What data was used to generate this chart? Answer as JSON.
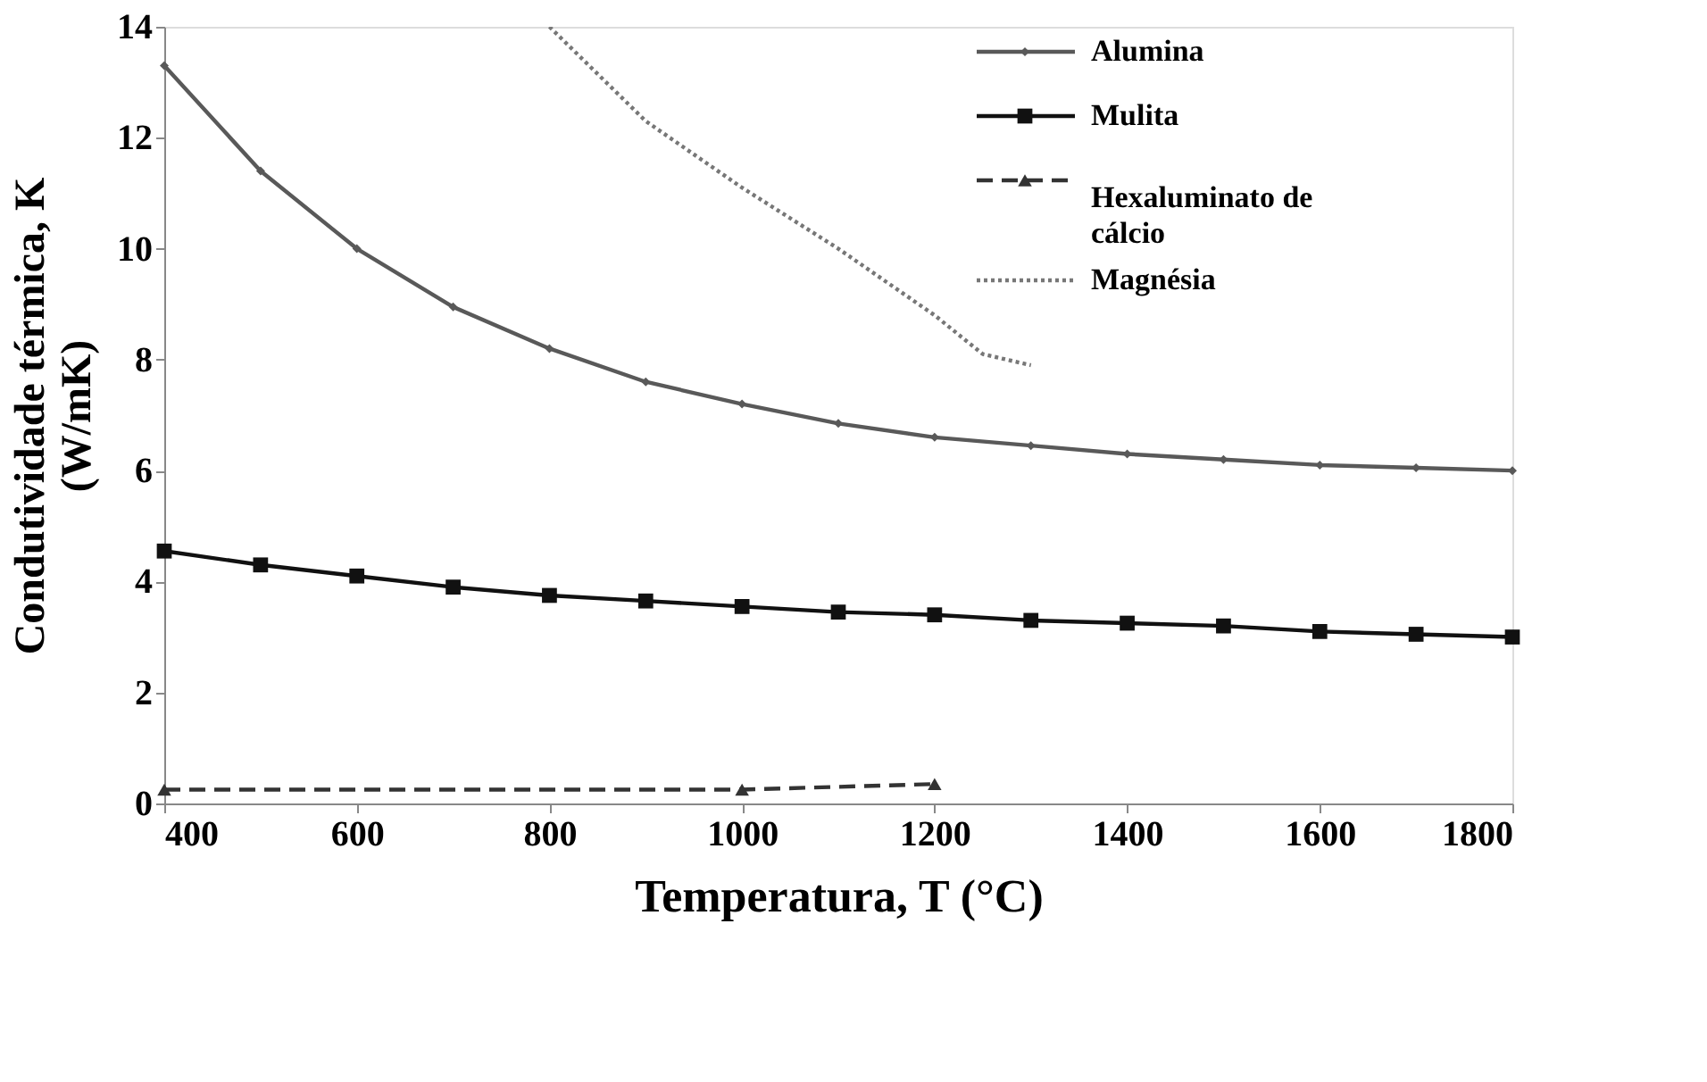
{
  "chart_data": {
    "type": "line",
    "xlabel": "Temperatura, T (°C)",
    "ylabel": "Condutividade térmica, K\n(W/mK)",
    "x": [
      400,
      500,
      600,
      700,
      800,
      900,
      1000,
      1100,
      1200,
      1300,
      1400,
      1500,
      1600,
      1700,
      1800
    ],
    "xlim": [
      400,
      1800
    ],
    "xticks": [
      400,
      600,
      800,
      1000,
      1200,
      1400,
      1600,
      1800
    ],
    "ylim": [
      0,
      14
    ],
    "yticks": [
      0,
      2,
      4,
      6,
      8,
      10,
      12,
      14
    ],
    "grid": false,
    "legend": "top right",
    "series": [
      {
        "name": "Alumina",
        "color": "#595959",
        "marker": "diamond",
        "line_style": "solid",
        "values": [
          13.3,
          11.4,
          10.0,
          8.95,
          8.2,
          7.6,
          7.2,
          6.85,
          6.6,
          6.45,
          6.3,
          6.2,
          6.1,
          6.05,
          6.0
        ]
      },
      {
        "name": "Mulita",
        "color": "#111111",
        "marker": "square",
        "line_style": "solid",
        "values": [
          4.55,
          4.3,
          4.1,
          3.9,
          3.75,
          3.65,
          3.55,
          3.45,
          3.4,
          3.3,
          3.25,
          3.2,
          3.1,
          3.05,
          3.0
        ]
      },
      {
        "name": "Hexaluminato de cálcio",
        "color": "#333333",
        "marker": "triangle",
        "line_style": "dashed",
        "x": [
          400,
          1000,
          1200
        ],
        "values": [
          0.25,
          0.25,
          0.35
        ]
      },
      {
        "name": "Magnésia",
        "color": "#777777",
        "marker": "none",
        "line_style": "dotted",
        "x": [
          800,
          900,
          1000,
          1100,
          1200,
          1250,
          1300
        ],
        "values": [
          14.0,
          12.3,
          11.1,
          10.0,
          8.8,
          8.1,
          7.9
        ]
      }
    ]
  }
}
